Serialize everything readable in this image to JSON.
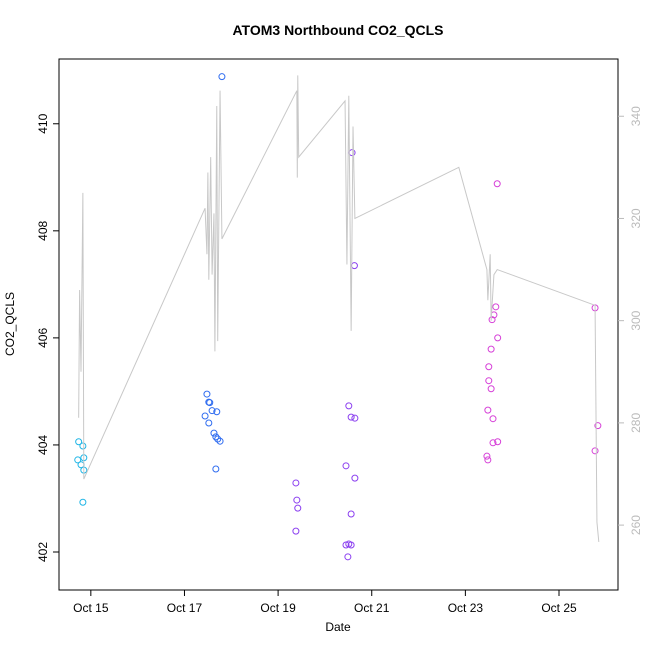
{
  "chart_data": {
    "type": "scatter",
    "title": "ATOM3 Northbound CO2_QCLS",
    "x_label": "Date",
    "y_label": "CO2_QCLS",
    "xlim": [
      14.32,
      26.26
    ],
    "ylim": [
      401.29,
      411.21
    ],
    "y2lim": [
      247.3,
      351.2
    ],
    "xticks": [
      {
        "value": 15,
        "label": "Oct 15"
      },
      {
        "value": 17,
        "label": "Oct 17"
      },
      {
        "value": 19,
        "label": "Oct 19"
      },
      {
        "value": 21,
        "label": "Oct 21"
      },
      {
        "value": 23,
        "label": "Oct 23"
      },
      {
        "value": 25,
        "label": "Oct 25"
      }
    ],
    "yticks": [
      402,
      404,
      406,
      408,
      410
    ],
    "y2ticks": [
      260,
      280,
      300,
      320,
      340
    ],
    "series": [
      {
        "color": "#1fb5e6",
        "x": [
          14.74,
          14.83,
          14.72,
          14.79,
          14.85,
          14.85,
          14.83
        ],
        "values": [
          404.06,
          403.98,
          403.72,
          403.63,
          403.76,
          403.53,
          402.93
        ]
      },
      {
        "color": "#2f6cf0",
        "x": [
          17.8,
          17.48,
          17.52,
          17.54,
          17.44,
          17.59,
          17.69,
          17.52,
          17.63,
          17.67,
          17.71,
          17.76,
          17.67
        ],
        "values": [
          410.88,
          404.95,
          404.8,
          404.79,
          404.54,
          404.64,
          404.62,
          404.41,
          404.22,
          404.15,
          404.11,
          404.07,
          403.55
        ]
      },
      {
        "color": "#8b3ff0",
        "x": [
          19.38,
          19.4,
          19.42,
          19.38,
          20.58,
          20.63,
          20.51,
          20.56,
          20.64,
          20.45,
          20.64,
          20.56,
          20.45,
          20.51,
          20.56,
          20.49
        ],
        "values": [
          403.29,
          402.97,
          402.82,
          402.39,
          409.46,
          407.35,
          404.73,
          404.52,
          404.5,
          403.61,
          403.38,
          402.71,
          402.13,
          402.15,
          402.13,
          401.91
        ]
      },
      {
        "color": "#d640d8",
        "x": [
          23.68,
          23.5,
          23.55,
          23.57,
          23.61,
          23.65,
          23.69,
          23.5,
          23.55,
          23.48,
          23.59,
          23.59,
          23.69,
          23.46,
          23.48,
          25.77,
          25.83,
          25.77
        ],
        "values": [
          408.88,
          405.46,
          405.79,
          406.34,
          406.43,
          406.58,
          406.0,
          405.2,
          405.05,
          404.65,
          404.49,
          404.04,
          404.06,
          403.79,
          403.72,
          406.56,
          404.36,
          403.89
        ]
      },
      {
        "type": "line",
        "axis": "y2",
        "color": "#c8c8c8",
        "x": [
          14.74,
          14.76,
          14.79,
          14.83,
          14.85,
          17.44,
          17.48,
          17.5,
          17.52,
          17.56,
          17.59,
          17.63,
          17.65,
          17.69,
          17.71,
          17.76,
          17.8,
          19.4,
          19.41,
          19.42,
          19.44,
          20.43,
          20.47,
          20.51,
          20.56,
          20.6,
          20.64,
          22.86,
          23.46,
          23.48,
          23.53,
          23.55,
          23.59,
          23.61,
          23.68,
          25.77,
          25.81,
          25.85
        ],
        "values": [
          281,
          306,
          290,
          325,
          269,
          322,
          313,
          329,
          308,
          332,
          309,
          321,
          294,
          342,
          296,
          345,
          316,
          345,
          328,
          348,
          332,
          343,
          311,
          344,
          298,
          338,
          320,
          330,
          310,
          304,
          313,
          300,
          306,
          309,
          310,
          303,
          260.6,
          256.7
        ]
      }
    ]
  }
}
